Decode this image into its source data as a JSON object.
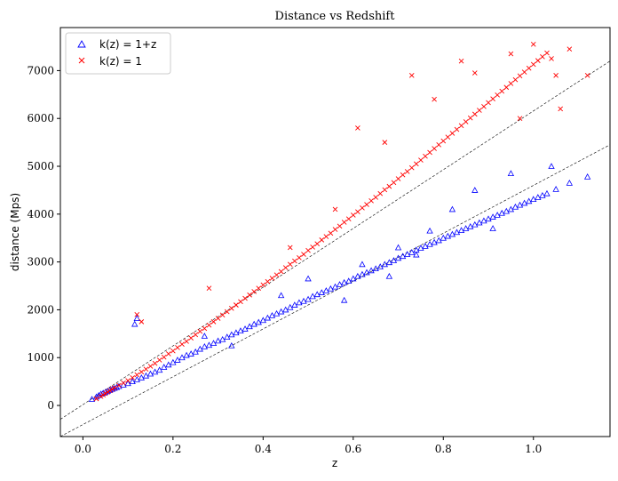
{
  "chart_data": {
    "type": "scatter",
    "title": "Distance vs Redshift",
    "xlabel": "z",
    "ylabel": "distance (Mps)",
    "xlim": [
      -0.05,
      1.17
    ],
    "ylim": [
      -650,
      7900
    ],
    "xticks": [
      0.0,
      0.2,
      0.4,
      0.6,
      0.8,
      1.0
    ],
    "xtick_labels": [
      "0.0",
      "0.2",
      "0.4",
      "0.6",
      "0.8",
      "1.0"
    ],
    "yticks": [
      0,
      1000,
      2000,
      3000,
      4000,
      5000,
      6000,
      7000
    ],
    "ytick_labels": [
      "0",
      "1000",
      "2000",
      "3000",
      "4000",
      "5000",
      "6000",
      "7000"
    ],
    "grid": false,
    "legend_position": "top-left",
    "series": [
      {
        "name": "k(z) = 1+z",
        "marker": "triangle-open",
        "color": "#0000ff",
        "x": [
          0.02,
          0.03,
          0.035,
          0.04,
          0.045,
          0.05,
          0.055,
          0.06,
          0.065,
          0.07,
          0.075,
          0.08,
          0.09,
          0.1,
          0.11,
          0.12,
          0.13,
          0.14,
          0.15,
          0.16,
          0.17,
          0.18,
          0.19,
          0.2,
          0.21,
          0.22,
          0.23,
          0.24,
          0.25,
          0.26,
          0.27,
          0.28,
          0.29,
          0.3,
          0.31,
          0.32,
          0.33,
          0.34,
          0.35,
          0.36,
          0.37,
          0.38,
          0.39,
          0.4,
          0.41,
          0.42,
          0.43,
          0.44,
          0.45,
          0.46,
          0.47,
          0.48,
          0.49,
          0.5,
          0.51,
          0.52,
          0.53,
          0.54,
          0.55,
          0.56,
          0.57,
          0.58,
          0.59,
          0.6,
          0.61,
          0.62,
          0.63,
          0.64,
          0.65,
          0.66,
          0.67,
          0.68,
          0.69,
          0.7,
          0.71,
          0.72,
          0.73,
          0.74,
          0.75,
          0.76,
          0.77,
          0.78,
          0.79,
          0.8,
          0.81,
          0.82,
          0.83,
          0.84,
          0.85,
          0.86,
          0.87,
          0.88,
          0.89,
          0.9,
          0.91,
          0.92,
          0.93,
          0.94,
          0.95,
          0.96,
          0.97,
          0.98,
          0.99,
          1.0,
          1.01,
          1.02,
          1.03,
          1.05,
          1.08,
          1.12,
          0.12,
          0.115,
          0.27,
          0.33,
          0.44,
          0.5,
          0.62,
          0.7,
          0.77,
          0.82,
          0.87,
          0.95,
          1.04,
          0.58,
          0.68,
          0.74,
          0.91
        ],
        "y": [
          130,
          180,
          210,
          240,
          260,
          280,
          300,
          320,
          340,
          360,
          380,
          400,
          430,
          460,
          500,
          540,
          580,
          620,
          660,
          700,
          740,
          800,
          850,
          900,
          950,
          1000,
          1050,
          1080,
          1120,
          1180,
          1230,
          1260,
          1300,
          1350,
          1380,
          1430,
          1480,
          1520,
          1560,
          1600,
          1650,
          1700,
          1740,
          1780,
          1830,
          1880,
          1920,
          1960,
          2000,
          2050,
          2100,
          2150,
          2180,
          2220,
          2280,
          2320,
          2360,
          2400,
          2440,
          2480,
          2530,
          2570,
          2600,
          2650,
          2700,
          2740,
          2780,
          2820,
          2860,
          2900,
          2950,
          2990,
          3030,
          3080,
          3120,
          3160,
          3200,
          3250,
          3290,
          3330,
          3370,
          3410,
          3450,
          3500,
          3540,
          3580,
          3620,
          3660,
          3700,
          3740,
          3780,
          3820,
          3860,
          3900,
          3940,
          3980,
          4020,
          4060,
          4100,
          4150,
          4190,
          4230,
          4270,
          4310,
          4350,
          4390,
          4430,
          4520,
          4650,
          4780,
          1820,
          1700,
          1450,
          1250,
          2300,
          2650,
          2950,
          3300,
          3650,
          4100,
          4500,
          4850,
          5000,
          2200,
          2700,
          3150,
          3700
        ]
      },
      {
        "name": "k(z) = 1",
        "marker": "x",
        "color": "#ff0000",
        "x": [
          0.03,
          0.04,
          0.045,
          0.05,
          0.055,
          0.06,
          0.065,
          0.07,
          0.08,
          0.09,
          0.1,
          0.11,
          0.12,
          0.13,
          0.14,
          0.15,
          0.16,
          0.17,
          0.18,
          0.19,
          0.2,
          0.21,
          0.22,
          0.23,
          0.24,
          0.25,
          0.26,
          0.27,
          0.28,
          0.29,
          0.3,
          0.31,
          0.32,
          0.33,
          0.34,
          0.35,
          0.36,
          0.37,
          0.38,
          0.39,
          0.4,
          0.41,
          0.42,
          0.43,
          0.44,
          0.45,
          0.46,
          0.47,
          0.48,
          0.49,
          0.5,
          0.51,
          0.52,
          0.53,
          0.54,
          0.55,
          0.56,
          0.57,
          0.58,
          0.59,
          0.6,
          0.61,
          0.62,
          0.63,
          0.64,
          0.65,
          0.66,
          0.67,
          0.68,
          0.69,
          0.7,
          0.71,
          0.72,
          0.73,
          0.74,
          0.75,
          0.76,
          0.77,
          0.78,
          0.79,
          0.8,
          0.81,
          0.82,
          0.83,
          0.84,
          0.85,
          0.86,
          0.87,
          0.88,
          0.89,
          0.9,
          0.91,
          0.92,
          0.93,
          0.94,
          0.95,
          0.96,
          0.97,
          0.98,
          0.99,
          1.0,
          1.01,
          1.02,
          1.03,
          1.04,
          1.05,
          1.08,
          1.12,
          0.12,
          0.13,
          0.28,
          0.34,
          0.46,
          0.56,
          0.67,
          0.78,
          0.87,
          0.97,
          1.06,
          0.61,
          0.73,
          0.84,
          0.95,
          1.0
        ],
        "y": [
          140,
          190,
          220,
          250,
          280,
          310,
          340,
          370,
          420,
          470,
          520,
          580,
          640,
          700,
          760,
          820,
          880,
          950,
          1010,
          1080,
          1140,
          1210,
          1280,
          1340,
          1410,
          1480,
          1550,
          1610,
          1680,
          1750,
          1820,
          1890,
          1960,
          2030,
          2100,
          2170,
          2240,
          2310,
          2380,
          2450,
          2520,
          2590,
          2660,
          2730,
          2800,
          2880,
          2950,
          3020,
          3090,
          3160,
          3240,
          3310,
          3380,
          3460,
          3530,
          3600,
          3680,
          3750,
          3830,
          3900,
          3980,
          4050,
          4130,
          4200,
          4280,
          4350,
          4430,
          4510,
          4580,
          4660,
          4740,
          4820,
          4890,
          4970,
          5050,
          5130,
          5210,
          5290,
          5370,
          5450,
          5530,
          5610,
          5690,
          5770,
          5850,
          5930,
          6010,
          6090,
          6170,
          6250,
          6330,
          6410,
          6490,
          6570,
          6650,
          6730,
          6810,
          6890,
          6970,
          7050,
          7130,
          7210,
          7290,
          7370,
          7250,
          6900,
          7450,
          6900,
          1900,
          1750,
          2450,
          2100,
          3300,
          4100,
          5500,
          6400,
          6950,
          6000,
          6200,
          5800,
          6900,
          7200,
          7350,
          7550
        ]
      }
    ],
    "fit_lines": [
      {
        "x": [
          -0.05,
          1.17
        ],
        "y": [
          -650,
          5450
        ]
      },
      {
        "x": [
          -0.05,
          1.17
        ],
        "y": [
          -290,
          7200
        ]
      }
    ]
  }
}
